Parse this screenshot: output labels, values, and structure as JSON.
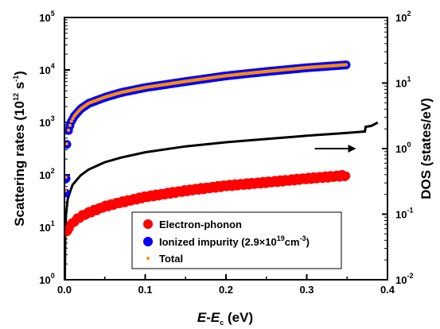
{
  "chart_data": {
    "type": "scatter",
    "title": "",
    "x_axis": {
      "label_parts": [
        {
          "text": "E",
          "italic": true
        },
        {
          "text": "-",
          "italic": false
        },
        {
          "text": "E",
          "italic": true
        },
        {
          "text": "c",
          "italic": false,
          "sub": true
        },
        {
          "text": " (eV)",
          "italic": false
        }
      ],
      "range": [
        0,
        0.4
      ],
      "ticks": [
        {
          "value": 0.0,
          "label": "0.0"
        },
        {
          "value": 0.1,
          "label": "0.1"
        },
        {
          "value": 0.2,
          "label": "0.2"
        },
        {
          "value": 0.3,
          "label": "0.3"
        },
        {
          "value": 0.4,
          "label": "0.4"
        }
      ]
    },
    "y_left": {
      "label": "Scattering rates (10",
      "label_sup1": "12",
      "label_mid": " s",
      "label_sup2": "-1",
      "label_end": ")",
      "scale": "log",
      "range": [
        1,
        100000
      ],
      "ticks": [
        {
          "value": 1,
          "base": "10",
          "exp": "0"
        },
        {
          "value": 10,
          "base": "10",
          "exp": "1"
        },
        {
          "value": 100,
          "base": "10",
          "exp": "2"
        },
        {
          "value": 1000,
          "base": "10",
          "exp": "3"
        },
        {
          "value": 10000,
          "base": "10",
          "exp": "4"
        },
        {
          "value": 100000,
          "base": "10",
          "exp": "5"
        }
      ]
    },
    "y_right": {
      "label": "DOS (states/eV)",
      "scale": "log",
      "range": [
        0.01,
        100
      ],
      "ticks": [
        {
          "value": 0.01,
          "base": "10",
          "exp": "-2"
        },
        {
          "value": 0.1,
          "base": "10",
          "exp": "-1"
        },
        {
          "value": 1,
          "base": "10",
          "exp": "0"
        },
        {
          "value": 10,
          "base": "10",
          "exp": "1"
        },
        {
          "value": 100,
          "base": "10",
          "exp": "2"
        }
      ]
    },
    "series": [
      {
        "name": "Electron-phonon",
        "kind": "scatter",
        "color": "#ff0000",
        "x": [
          0.003,
          0.005,
          0.008,
          0.012,
          0.02,
          0.03,
          0.05,
          0.07,
          0.1,
          0.15,
          0.2,
          0.25,
          0.3,
          0.35
        ],
        "y": [
          8,
          9.5,
          11,
          13,
          16,
          19,
          25,
          30,
          38,
          50,
          62,
          72,
          85,
          98
        ]
      },
      {
        "name": "Ionized impurity (2.9×10^19 cm^-3)",
        "legend_base": "Ionized impurity (2.9×10",
        "legend_sup": "19",
        "legend_mid": "cm",
        "legend_sup2": "-3",
        "legend_end": ")",
        "kind": "scatter",
        "color": "#0000ff",
        "x": [
          0.0015,
          0.002,
          0.003,
          0.005,
          0.008,
          0.012,
          0.02,
          0.03,
          0.05,
          0.07,
          0.1,
          0.15,
          0.2,
          0.25,
          0.3,
          0.35
        ],
        "y": [
          45,
          85,
          380,
          700,
          1000,
          1300,
          1800,
          2300,
          3000,
          3700,
          4600,
          6000,
          7700,
          9300,
          11000,
          12500
        ]
      },
      {
        "name": "Total",
        "kind": "scatter",
        "color": "#ff8c00",
        "x": [
          0.0015,
          0.002,
          0.003,
          0.005,
          0.008,
          0.012,
          0.02,
          0.03,
          0.05,
          0.07,
          0.1,
          0.15,
          0.2,
          0.25,
          0.3,
          0.35
        ],
        "y": [
          50,
          90,
          390,
          710,
          1010,
          1310,
          1815,
          2320,
          3025,
          3730,
          4640,
          6050,
          7760,
          9370,
          11085,
          12600
        ]
      },
      {
        "name": "DOS",
        "kind": "line",
        "axis": "right",
        "color": "#000000",
        "x": [
          0.0005,
          0.001,
          0.002,
          0.004,
          0.007,
          0.01,
          0.02,
          0.03,
          0.05,
          0.07,
          0.1,
          0.15,
          0.2,
          0.25,
          0.3,
          0.35,
          0.372,
          0.373,
          0.38,
          0.388
        ],
        "y": [
          0.01,
          0.05,
          0.1,
          0.17,
          0.22,
          0.28,
          0.39,
          0.48,
          0.62,
          0.73,
          0.88,
          1.08,
          1.25,
          1.4,
          1.57,
          1.74,
          1.82,
          2.15,
          2.22,
          2.5
        ]
      }
    ],
    "annotation": {
      "type": "arrow",
      "points_to": "right axis",
      "x_start": 0.31,
      "x_end": 0.36,
      "y_right": 1.0
    },
    "legend_placement": "lower-center",
    "grid": false
  }
}
